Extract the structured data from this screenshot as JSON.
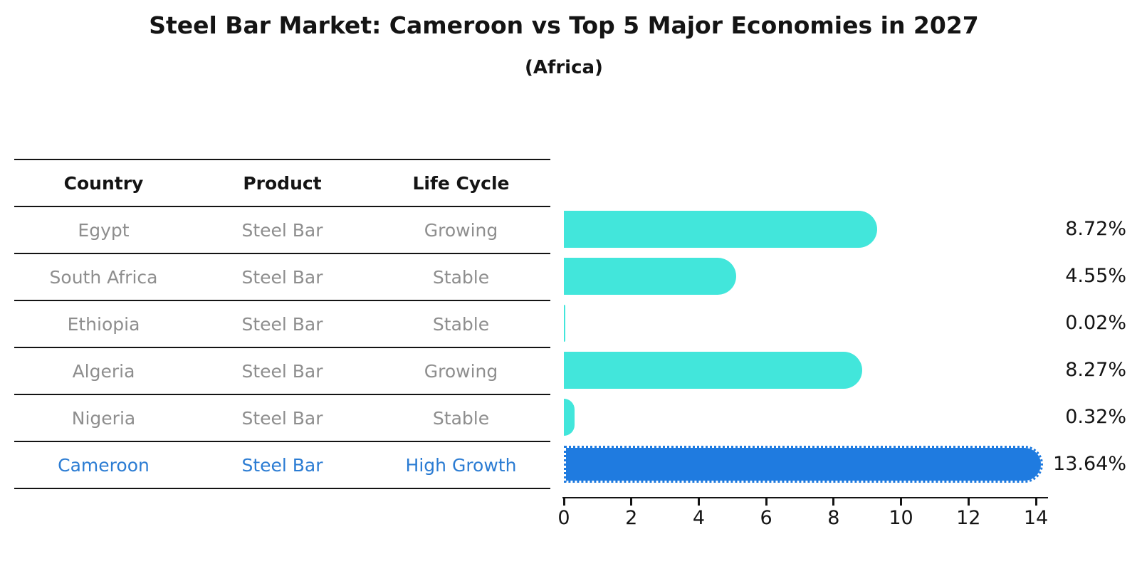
{
  "title": "Steel Bar Market: Cameroon vs Top 5 Major Economies in 2027",
  "subtitle": "(Africa)",
  "table": {
    "headers": [
      "Country",
      "Product",
      "Life Cycle"
    ],
    "rows": [
      {
        "country": "Egypt",
        "product": "Steel Bar",
        "life_cycle": "Growing",
        "highlight": false
      },
      {
        "country": "South Africa",
        "product": "Steel Bar",
        "life_cycle": "Stable",
        "highlight": false
      },
      {
        "country": "Ethiopia",
        "product": "Steel Bar",
        "life_cycle": "Stable",
        "highlight": false
      },
      {
        "country": "Algeria",
        "product": "Steel Bar",
        "life_cycle": "Growing",
        "highlight": false
      },
      {
        "country": "Nigeria",
        "product": "Steel Bar",
        "life_cycle": "Stable",
        "highlight": false
      },
      {
        "country": "Cameroon",
        "product": "Steel Bar",
        "life_cycle": "High Growth",
        "highlight": true
      }
    ]
  },
  "chart_data": {
    "type": "bar",
    "orientation": "horizontal",
    "title": "Steel Bar Market: Cameroon vs Top 5 Major Economies in 2027",
    "subtitle": "(Africa)",
    "categories": [
      "Egypt",
      "South Africa",
      "Ethiopia",
      "Algeria",
      "Nigeria",
      "Cameroon"
    ],
    "values": [
      8.72,
      4.55,
      0.02,
      8.27,
      0.32,
      13.64
    ],
    "value_labels": [
      "8.72%",
      "4.55%",
      "0.02%",
      "8.27%",
      "0.32%",
      "13.64%"
    ],
    "xlabel": "",
    "ylabel": "",
    "xlim": [
      0,
      14.4
    ],
    "xticks": [
      0,
      2,
      4,
      6,
      8,
      10,
      12,
      14
    ],
    "grid": false,
    "legend": false,
    "bar_color": "#42E6DB",
    "highlight_bar_color": "#1F7BE0",
    "highlight_index": 5
  },
  "colors": {
    "text": "#141414",
    "muted_text": "#8E8E8E",
    "highlight_text": "#2B7CD3",
    "line": "#141414",
    "background": "#FFFFFF"
  }
}
